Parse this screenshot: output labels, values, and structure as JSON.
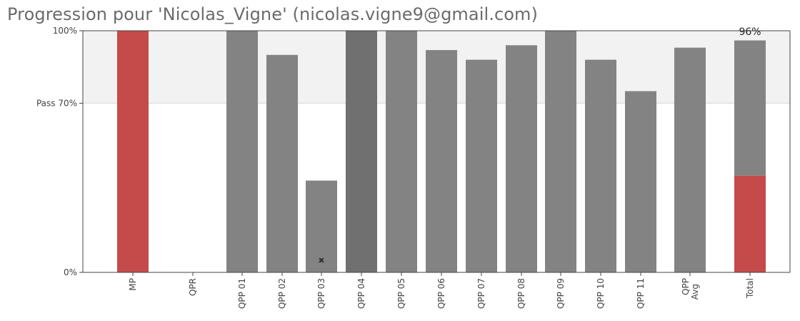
{
  "title": "Progression pour 'Nicolas_Vigne' (nicolas.vigne9@gmail.com)",
  "colors": {
    "bar": "#838383",
    "bar_highlight": "#707070",
    "fail": "#c54a4a",
    "pass_band": "#f2f2f2",
    "axis": "#444444"
  },
  "chart_data": {
    "type": "bar",
    "ylim": [
      0,
      100
    ],
    "yticks": [
      {
        "value": 0,
        "label": "0%"
      },
      {
        "value": 70,
        "label": "Pass 70%"
      },
      {
        "value": 100,
        "label": "100%"
      }
    ],
    "pass_threshold": 70,
    "categories": [
      "MP",
      "QPR",
      "QPP 01",
      "QPP 02",
      "QPP 03",
      "QPP 04",
      "QPP 05",
      "QPP 06",
      "QPP 07",
      "QPP 08",
      "QPP 09",
      "QPP 10",
      "QPP 11",
      "QPP Avg",
      "Total"
    ],
    "values": [
      100,
      0,
      100,
      90,
      38,
      100,
      100,
      92,
      88,
      94,
      100,
      88,
      75,
      93,
      96
    ],
    "fail_segment": [
      100,
      0,
      0,
      0,
      0,
      0,
      0,
      0,
      0,
      0,
      0,
      0,
      0,
      0,
      40
    ],
    "highlighted": [
      "QPP 04"
    ],
    "markers": [
      {
        "category": "QPP 03",
        "symbol": "✖"
      }
    ],
    "data_labels": [
      {
        "category": "Total",
        "text": "96%"
      }
    ],
    "grid": false
  }
}
